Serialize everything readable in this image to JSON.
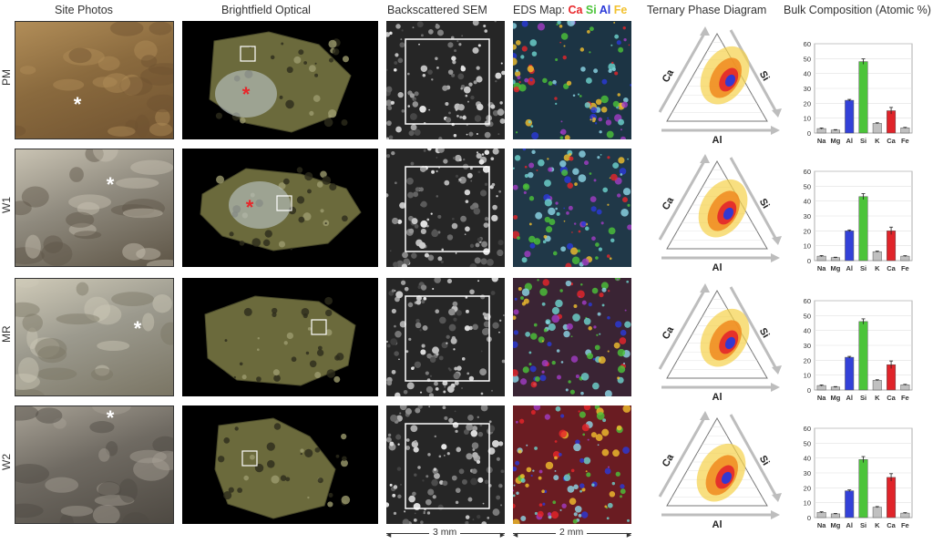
{
  "headers": {
    "site": "Site Photos",
    "optical": "Brightfield Optical",
    "sem": "Backscattered SEM",
    "eds_prefix": "EDS Map: ",
    "eds_elements": [
      {
        "label": "Ca",
        "color": "#e8262a"
      },
      {
        "label": "Si",
        "color": "#4cc43a"
      },
      {
        "label": "Al",
        "color": "#2a39d9"
      },
      {
        "label": "Fe",
        "color": "#f2c12e"
      }
    ],
    "ternary": "Ternary Phase Diagram",
    "bulk": "Bulk Composition (Atomic %)"
  },
  "rows": [
    {
      "label": "PM"
    },
    {
      "label": "W1"
    },
    {
      "label": "MR"
    },
    {
      "label": "W2"
    }
  ],
  "ternary_axes": {
    "left": "Ca",
    "right": "Si",
    "bottom": "Al"
  },
  "scale_bars": {
    "sem": "3 mm",
    "eds": "2 mm"
  },
  "colors": {
    "Na": "#c0c0c0",
    "Mg": "#c0c0c0",
    "Al": "#3341d8",
    "Si": "#4cc43a",
    "K": "#c0c0c0",
    "Ca": "#e0242a",
    "Fe": "#c0c0c0"
  },
  "chart_data": [
    {
      "type": "bar",
      "categories": [
        "Na",
        "Mg",
        "Al",
        "Si",
        "K",
        "Ca",
        "Fe"
      ],
      "values": [
        3,
        2,
        22,
        48,
        6.5,
        15,
        3.5
      ],
      "errors": [
        0.4,
        0.3,
        0.6,
        1.8,
        0.4,
        2.2,
        0.3
      ],
      "ylim": [
        0,
        60
      ],
      "yticks": [
        0,
        10,
        20,
        30,
        40,
        50,
        60
      ]
    },
    {
      "type": "bar",
      "categories": [
        "Na",
        "Mg",
        "Al",
        "Si",
        "K",
        "Ca",
        "Fe"
      ],
      "values": [
        3,
        2,
        20,
        43,
        6,
        20,
        3
      ],
      "errors": [
        0.4,
        0.3,
        0.6,
        2,
        0.4,
        2.5,
        0.3
      ],
      "ylim": [
        0,
        60
      ],
      "yticks": [
        0,
        10,
        20,
        30,
        40,
        50,
        60
      ]
    },
    {
      "type": "bar",
      "categories": [
        "Na",
        "Mg",
        "Al",
        "Si",
        "K",
        "Ca",
        "Fe"
      ],
      "values": [
        3,
        2,
        22,
        46,
        6.5,
        17,
        3.5
      ],
      "errors": [
        0.4,
        0.3,
        0.6,
        1.8,
        0.4,
        2.5,
        0.3
      ],
      "ylim": [
        0,
        60
      ],
      "yticks": [
        0,
        10,
        20,
        30,
        40,
        50,
        60
      ]
    },
    {
      "type": "bar",
      "categories": [
        "Na",
        "Mg",
        "Al",
        "Si",
        "K",
        "Ca",
        "Fe"
      ],
      "values": [
        3.5,
        2.5,
        18,
        39,
        7,
        27,
        3
      ],
      "errors": [
        0.4,
        0.3,
        0.6,
        2,
        0.4,
        2.5,
        0.3
      ],
      "ylim": [
        0,
        60
      ],
      "yticks": [
        0,
        10,
        20,
        30,
        40,
        50,
        60
      ]
    }
  ]
}
